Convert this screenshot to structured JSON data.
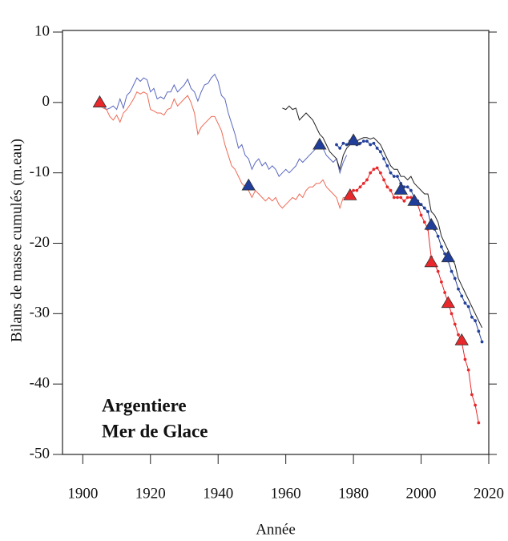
{
  "chart_data": {
    "type": "line",
    "ylabel": "Bilans de masse cumulés (m.eau)",
    "xlabel": "Année",
    "xlim": [
      1894,
      2020
    ],
    "ylim": [
      -50,
      10
    ],
    "xticks": [
      1900,
      1920,
      1940,
      1960,
      1980,
      2000,
      2020
    ],
    "yticks": [
      10,
      0,
      -10,
      -20,
      -30,
      -40,
      -50
    ],
    "legend": [
      {
        "text": "Argentiere",
        "color": "#23409a"
      },
      {
        "text": "Mer de Glace",
        "color": "#e8282b"
      }
    ],
    "series": [
      {
        "style": "line",
        "color": "#5a68c0",
        "x": [
          1905,
          1906,
          1907,
          1908,
          1909,
          1910,
          1911,
          1912,
          1913,
          1914,
          1915,
          1916,
          1917,
          1918,
          1919,
          1920,
          1921,
          1922,
          1923,
          1924,
          1925,
          1926,
          1927,
          1928,
          1929,
          1930,
          1931,
          1932,
          1933,
          1934,
          1935,
          1936,
          1937,
          1938,
          1939,
          1940,
          1941,
          1942,
          1943,
          1944,
          1945,
          1946,
          1947,
          1948,
          1949,
          1950,
          1951,
          1952,
          1953,
          1954,
          1955,
          1956,
          1957,
          1958,
          1959,
          1960,
          1961,
          1962,
          1963,
          1964,
          1965,
          1966,
          1967,
          1968,
          1969,
          1970,
          1971,
          1972,
          1973,
          1974,
          1975,
          1976,
          1977,
          1978
        ],
        "values": [
          0,
          -0.5,
          -1,
          -0.8,
          -0.5,
          -1,
          0.5,
          -0.8,
          1,
          1.5,
          2.5,
          3.5,
          3,
          3.5,
          3.2,
          1.5,
          2,
          0.5,
          0.8,
          0.5,
          1.5,
          1.5,
          2.5,
          1.5,
          2,
          2.5,
          3.3,
          2,
          1.5,
          0.2,
          1.5,
          2.5,
          2.7,
          3.5,
          4,
          3,
          1,
          0.5,
          -1.5,
          -3,
          -4.5,
          -6.5,
          -6,
          -7.5,
          -8,
          -9.5,
          -8.5,
          -8,
          -9,
          -8.5,
          -9.5,
          -9,
          -9.5,
          -10.5,
          -10,
          -9.5,
          -10,
          -9.5,
          -9,
          -8,
          -8.5,
          -8,
          -7.5,
          -7,
          -6.5,
          -6,
          -6.5,
          -7.5,
          -8,
          -8.5,
          -8,
          -10,
          -8.5,
          -7.5
        ]
      },
      {
        "style": "line",
        "color": "#ee6a55",
        "x": [
          1905,
          1906,
          1907,
          1908,
          1909,
          1910,
          1911,
          1912,
          1913,
          1914,
          1915,
          1916,
          1917,
          1918,
          1919,
          1920,
          1921,
          1922,
          1923,
          1924,
          1925,
          1926,
          1927,
          1928,
          1929,
          1930,
          1931,
          1932,
          1933,
          1934,
          1935,
          1936,
          1937,
          1938,
          1939,
          1940,
          1941,
          1942,
          1943,
          1944,
          1945,
          1946,
          1947,
          1948,
          1949,
          1950,
          1951,
          1952,
          1953,
          1954,
          1955,
          1956,
          1957,
          1958,
          1959,
          1960,
          1961,
          1962,
          1963,
          1964,
          1965,
          1966,
          1967,
          1968,
          1969,
          1970,
          1971,
          1972,
          1973,
          1974,
          1975,
          1976,
          1977,
          1978,
          1979
        ],
        "values": [
          0,
          -0.8,
          -1,
          -2,
          -2.5,
          -1.8,
          -2.8,
          -1.5,
          -1,
          -0.3,
          0.5,
          1.5,
          1.2,
          1.5,
          1.2,
          -1,
          -1.2,
          -1.5,
          -1.5,
          -1.8,
          -1,
          -0.8,
          0.5,
          -0.5,
          0,
          0.5,
          1,
          0,
          -1.5,
          -4.5,
          -3.5,
          -3,
          -2.5,
          -2,
          -2,
          -3,
          -4,
          -6,
          -7.5,
          -9,
          -9.5,
          -10.5,
          -11.5,
          -12,
          -12.5,
          -13.5,
          -12.5,
          -13,
          -13.5,
          -14,
          -13.5,
          -14,
          -13.5,
          -14.5,
          -15,
          -14.5,
          -14,
          -13.5,
          -13.8,
          -13,
          -13.5,
          -12.5,
          -12,
          -12,
          -11.5,
          -11.5,
          -11,
          -12,
          -12.5,
          -13,
          -13.5,
          -15,
          -13.5,
          -13.5,
          -13
        ]
      },
      {
        "style": "line",
        "color": "#222222",
        "x": [
          1959,
          1960,
          1961,
          1962,
          1963,
          1964,
          1965,
          1966,
          1967,
          1968,
          1969,
          1970,
          1971,
          1972,
          1973,
          1974,
          1975,
          1976,
          1977,
          1978,
          1979,
          1980,
          1981,
          1982,
          1983,
          1984,
          1985,
          1986,
          1987,
          1988,
          1989,
          1990,
          1991,
          1992,
          1993,
          1994,
          1995,
          1996,
          1997,
          1998,
          1999,
          2000,
          2001,
          2002,
          2003,
          2004,
          2005,
          2006,
          2007,
          2008,
          2009,
          2010,
          2011,
          2012,
          2013,
          2014,
          2015,
          2016,
          2017,
          2018
        ],
        "values": [
          -0.8,
          -1,
          -0.5,
          -1,
          -0.8,
          -2.5,
          -2,
          -1.5,
          -2,
          -2.5,
          -3.5,
          -4.5,
          -5,
          -6,
          -7,
          -7.5,
          -8,
          -9.5,
          -7.5,
          -6.5,
          -6,
          -5,
          -5.5,
          -5.2,
          -5,
          -5,
          -5.2,
          -5,
          -5.5,
          -6,
          -7,
          -8,
          -9,
          -9.5,
          -9.5,
          -10.5,
          -10.5,
          -11,
          -10.5,
          -11.5,
          -12,
          -12.5,
          -13,
          -13,
          -15.5,
          -16,
          -17,
          -19,
          -20,
          -21,
          -22,
          -23,
          -25,
          -26,
          -27,
          -28,
          -29,
          -30,
          -31,
          -32
        ]
      },
      {
        "style": "dots",
        "color": "#23409a",
        "x": [
          1975,
          1976,
          1977,
          1978,
          1979,
          1980,
          1981,
          1982,
          1983,
          1984,
          1985,
          1986,
          1987,
          1988,
          1989,
          1990,
          1991,
          1992,
          1993,
          1994,
          1995,
          1996,
          1997,
          1998,
          1999,
          2000,
          2001,
          2002,
          2003,
          2004,
          2005,
          2006,
          2007,
          2008,
          2009,
          2010,
          2011,
          2012,
          2013,
          2014,
          2015,
          2016,
          2017,
          2018
        ],
        "values": [
          -6,
          -6.5,
          -5.8,
          -6,
          -5.5,
          -5.5,
          -6,
          -5.8,
          -5.5,
          -5.5,
          -6,
          -5.8,
          -6.5,
          -7,
          -8,
          -9,
          -10,
          -10.5,
          -10.5,
          -11.5,
          -12,
          -12,
          -12.5,
          -13.5,
          -14,
          -14.5,
          -15,
          -15.5,
          -17.5,
          -18,
          -19,
          -20.5,
          -21.5,
          -22.5,
          -24,
          -25,
          -26.5,
          -27.5,
          -28.5,
          -29,
          -30.5,
          -31,
          -32.5,
          -34
        ]
      },
      {
        "style": "dots",
        "color": "#e8282b",
        "x": [
          1979,
          1980,
          1981,
          1982,
          1983,
          1984,
          1985,
          1986,
          1987,
          1988,
          1989,
          1990,
          1991,
          1992,
          1993,
          1994,
          1995,
          1996,
          1997,
          1998,
          1999,
          2000,
          2001,
          2002,
          2003,
          2004,
          2005,
          2006,
          2007,
          2008,
          2009,
          2010,
          2011,
          2012,
          2013,
          2014,
          2015,
          2016,
          2017
        ],
        "values": [
          -13,
          -12.5,
          -12.5,
          -12,
          -11.5,
          -11,
          -10,
          -9.5,
          -9.3,
          -10,
          -11,
          -12,
          -12.5,
          -13.5,
          -13.5,
          -13.5,
          -14,
          -13.5,
          -13.5,
          -14,
          -14.5,
          -16,
          -17,
          -18,
          -22,
          -23,
          -24,
          -25.5,
          -27,
          -28.5,
          -30,
          -31.5,
          -33,
          -34,
          -36.5,
          -38,
          -41.5,
          -43,
          -45.5
        ]
      },
      {
        "style": "triangles",
        "color": "#1f3d99",
        "x": [
          1905,
          1949,
          1970,
          1980,
          1994,
          1998,
          2003,
          2008
        ],
        "values": [
          0,
          -11.8,
          -6,
          -5.4,
          -12.4,
          -14,
          -17.4,
          -22
        ]
      },
      {
        "style": "triangles",
        "color": "#e8282b",
        "x": [
          1905,
          1979,
          2003,
          2008,
          2012
        ],
        "values": [
          0,
          -13.2,
          -22.7,
          -28.5,
          -33.8
        ]
      }
    ]
  }
}
